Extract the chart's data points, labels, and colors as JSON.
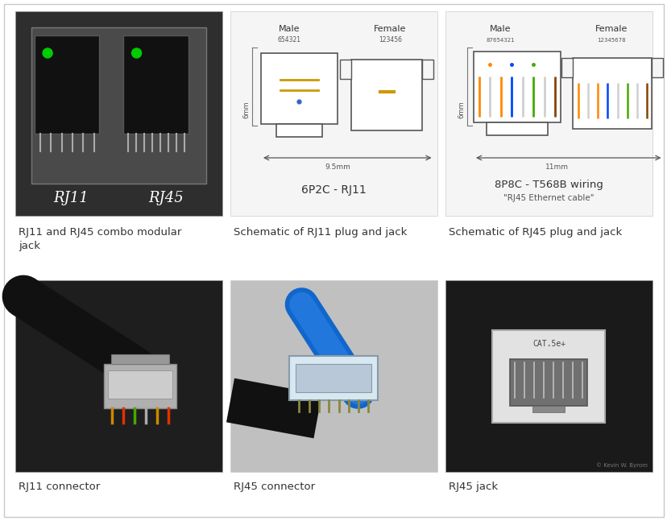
{
  "background_color": "#ffffff",
  "border_color": "#c8c8c8",
  "caption_color": "#333333",
  "caption_fontsize": 9.5,
  "captions": [
    [
      "RJ11 and RJ45 combo modular\njack",
      "Schematic of RJ11 plug and jack",
      "Schematic of RJ45 plug and jack"
    ],
    [
      "RJ11 connector",
      "RJ45 connector",
      "RJ45 jack"
    ]
  ],
  "panel0_bg": "#2e2e2e",
  "panel1_bg": "#f5f5f5",
  "panel2_bg": "#f5f5f5",
  "panel3_bg": "#1e1e1e",
  "panel4_bg": "#c0c0c0",
  "panel5_bg": "#1a1a1a"
}
